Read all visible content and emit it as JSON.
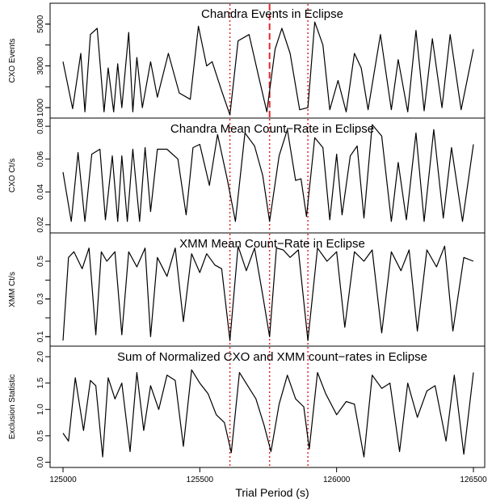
{
  "chart_data": {
    "type": "line",
    "xlabel": "Trial Period (s)",
    "xlim": [
      125000,
      126500
    ],
    "x_ticks": [
      125000,
      125500,
      126000,
      126500
    ],
    "x_tick_labels": [
      "125000",
      "125500",
      "126000",
      "126500"
    ],
    "reference_lines": [
      {
        "x": 125610,
        "style": "dotted",
        "color": "#e8262a"
      },
      {
        "x": 125755,
        "style": "dashed",
        "color": "#e8262a",
        "panels": [
          0
        ]
      },
      {
        "x": 125755,
        "style": "dotted",
        "color": "#e8262a",
        "panels": [
          1,
          2,
          3
        ]
      },
      {
        "x": 125895,
        "style": "dotted",
        "color": "#e8262a"
      }
    ],
    "panels": [
      {
        "title": "Chandra Events in Eclipse",
        "ylabel": "CXO Events",
        "ylim": [
          500,
          6000
        ],
        "y_ticks": [
          1000,
          3000,
          5000
        ],
        "y_minor_ticks": [
          1000,
          2000,
          3000,
          4000,
          5000
        ],
        "y_tick_labels": [
          "1000",
          "3000",
          "5000"
        ],
        "series": [
          {
            "x": [
              125000,
              125035,
              125065,
              125080,
              125100,
              125125,
              125150,
              125165,
              125185,
              125200,
              125215,
              125240,
              125255,
              125270,
              125290,
              125320,
              125345,
              125385,
              125425,
              125465,
              125495,
              125525,
              125545,
              125580,
              125610,
              125640,
              125680,
              125715,
              125745,
              125775,
              125800,
              125830,
              125865,
              125895,
              125920,
              125950,
              125975,
              126005,
              126035,
              126065,
              126090,
              126115,
              126160,
              126200,
              126225,
              126260,
              126290,
              126320,
              126350,
              126385,
              126415,
              126455,
              126500
            ],
            "y": [
              3200,
              950,
              3600,
              800,
              4500,
              4800,
              800,
              2900,
              800,
              3100,
              1000,
              4600,
              800,
              3400,
              1000,
              3200,
              1500,
              3600,
              1700,
              1400,
              4900,
              3000,
              3200,
              1800,
              650,
              4200,
              4500,
              2500,
              800,
              3800,
              4800,
              3600,
              900,
              1000,
              5100,
              4000,
              900,
              2300,
              800,
              3600,
              2900,
              900,
              4500,
              900,
              3300,
              800,
              4700,
              850,
              4300,
              1000,
              4500,
              900,
              3800
            ]
          }
        ]
      },
      {
        "title": "Chandra Mean Count−Rate in Eclipse",
        "ylabel": "CXO Ct/s",
        "ylim": [
          0.015,
          0.085
        ],
        "y_ticks": [
          0.02,
          0.04,
          0.06,
          0.08
        ],
        "y_tick_labels": [
          "0.02",
          "0.04",
          "0.06",
          "0.08"
        ],
        "series": [
          {
            "x": [
              125000,
              125030,
              125055,
              125080,
              125105,
              125135,
              125155,
              125180,
              125200,
              125215,
              125235,
              125255,
              125280,
              125300,
              125320,
              125345,
              125380,
              125420,
              125450,
              125475,
              125500,
              125535,
              125565,
              125600,
              125630,
              125665,
              125700,
              125730,
              125755,
              125790,
              125820,
              125850,
              125870,
              125890,
              125920,
              125950,
              125975,
              126000,
              126020,
              126050,
              126075,
              126100,
              126130,
              126165,
              126200,
              126225,
              126255,
              126290,
              126320,
              126355,
              126390,
              126420,
              126460,
              126500
            ],
            "y": [
              0.052,
              0.022,
              0.064,
              0.022,
              0.063,
              0.066,
              0.023,
              0.062,
              0.022,
              0.062,
              0.022,
              0.066,
              0.022,
              0.067,
              0.028,
              0.066,
              0.066,
              0.06,
              0.026,
              0.067,
              0.069,
              0.044,
              0.075,
              0.048,
              0.022,
              0.076,
              0.068,
              0.05,
              0.022,
              0.062,
              0.078,
              0.047,
              0.048,
              0.025,
              0.073,
              0.067,
              0.023,
              0.063,
              0.026,
              0.062,
              0.068,
              0.024,
              0.081,
              0.074,
              0.022,
              0.058,
              0.023,
              0.076,
              0.022,
              0.078,
              0.024,
              0.067,
              0.022,
              0.069
            ]
          }
        ]
      },
      {
        "title": "XMM Mean Count−Rate in Eclipse",
        "ylabel": "XMM Ct/s",
        "ylim": [
          0.05,
          0.65
        ],
        "y_ticks": [
          0.1,
          0.3,
          0.5
        ],
        "y_minor_ticks": [
          0.1,
          0.2,
          0.3,
          0.4,
          0.5
        ],
        "y_tick_labels": [
          "0.1",
          "0.3",
          "0.5"
        ],
        "series": [
          {
            "x": [
              125000,
              125020,
              125040,
              125070,
              125095,
              125120,
              125140,
              125160,
              125190,
              125215,
              125240,
              125270,
              125300,
              125320,
              125345,
              125380,
              125410,
              125440,
              125470,
              125500,
              125525,
              125555,
              125580,
              125610,
              125640,
              125670,
              125700,
              125730,
              125755,
              125780,
              125805,
              125830,
              125860,
              125895,
              125930,
              125965,
              126000,
              126030,
              126065,
              126100,
              126130,
              126165,
              126200,
              126235,
              126265,
              126295,
              126330,
              126365,
              126395,
              126425,
              126465,
              126500
            ],
            "y": [
              0.08,
              0.52,
              0.55,
              0.46,
              0.57,
              0.11,
              0.55,
              0.5,
              0.55,
              0.11,
              0.55,
              0.47,
              0.57,
              0.1,
              0.52,
              0.42,
              0.57,
              0.18,
              0.54,
              0.44,
              0.54,
              0.48,
              0.46,
              0.08,
              0.58,
              0.45,
              0.57,
              0.32,
              0.1,
              0.57,
              0.56,
              0.52,
              0.56,
              0.08,
              0.57,
              0.5,
              0.55,
              0.15,
              0.55,
              0.5,
              0.56,
              0.12,
              0.55,
              0.45,
              0.56,
              0.13,
              0.56,
              0.47,
              0.58,
              0.13,
              0.52,
              0.5
            ]
          }
        ]
      },
      {
        "title": "Sum of Normalized CXO and XMM count−rates in Eclipse",
        "ylabel": "Exclusion Statistic",
        "ylim": [
          -0.1,
          2.2
        ],
        "y_ticks": [
          0.0,
          0.5,
          1.0,
          1.5,
          2.0
        ],
        "y_tick_labels": [
          "0.0",
          "0.5",
          "1.0",
          "1.5",
          "2.0"
        ],
        "series": [
          {
            "x": [
              125000,
              125020,
              125045,
              125075,
              125100,
              125120,
              125145,
              125165,
              125190,
              125215,
              125245,
              125270,
              125295,
              125320,
              125350,
              125380,
              125410,
              125440,
              125470,
              125500,
              125530,
              125560,
              125590,
              125615,
              125645,
              125675,
              125705,
              125735,
              125760,
              125790,
              125820,
              125850,
              125880,
              125900,
              125930,
              125960,
              126000,
              126035,
              126065,
              126100,
              126130,
              126165,
              126195,
              126230,
              126260,
              126295,
              126330,
              126360,
              126400,
              126430,
              126465,
              126500
            ],
            "y": [
              0.55,
              0.4,
              1.6,
              0.6,
              1.55,
              1.45,
              0.1,
              1.6,
              1.2,
              1.5,
              0.2,
              1.7,
              0.6,
              1.45,
              1.0,
              1.65,
              1.55,
              0.3,
              1.75,
              1.5,
              1.3,
              0.9,
              0.75,
              0.18,
              1.7,
              1.45,
              1.2,
              0.7,
              0.2,
              1.1,
              1.65,
              1.2,
              1.05,
              0.25,
              1.7,
              1.3,
              0.9,
              1.15,
              1.1,
              0.1,
              1.65,
              1.4,
              1.5,
              0.2,
              1.5,
              0.85,
              1.35,
              1.45,
              0.4,
              1.65,
              0.15,
              1.7
            ]
          }
        ]
      }
    ]
  }
}
